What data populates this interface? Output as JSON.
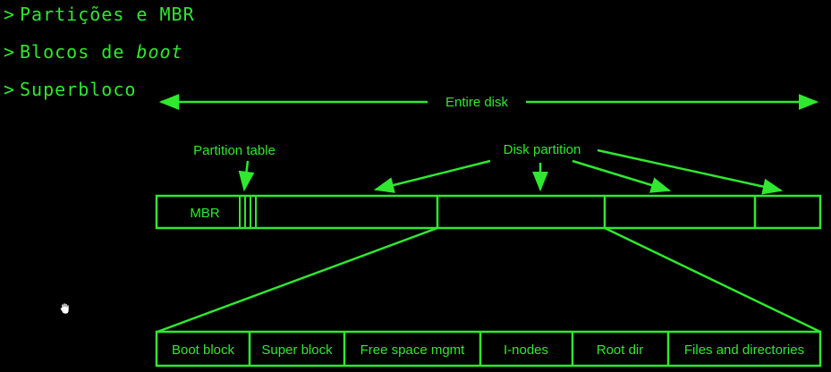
{
  "bullets": [
    {
      "text": "Partições e MBR"
    },
    {
      "prefix": "Blocos de ",
      "emph": "boot"
    },
    {
      "text": "Superbloco"
    }
  ],
  "diagram": {
    "entire_disk": "Entire disk",
    "partition_table": "Partition table",
    "disk_partition": "Disk partition",
    "mbr": "MBR",
    "layout_blocks": [
      "Boot block",
      "Super block",
      "Free space mgmt",
      "I-nodes",
      "Root dir",
      "Files and directories"
    ]
  },
  "colors": {
    "accent": "#2fe82f",
    "background": "#000000"
  },
  "icons": {
    "cursor": "hand-cursor-icon"
  }
}
